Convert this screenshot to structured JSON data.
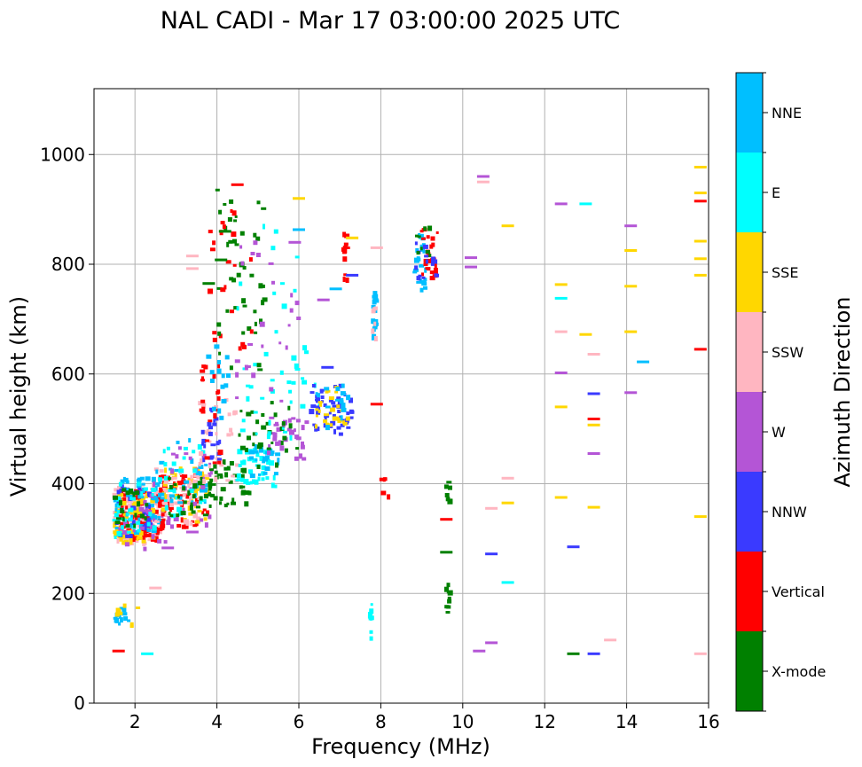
{
  "chart_data": {
    "type": "scatter",
    "title": "NAL CADI - Mar 17 03:00:00 2025 UTC",
    "xlabel": "Frequency (MHz)",
    "ylabel": "Virtual height (km)",
    "xlim": [
      1.0,
      16.0
    ],
    "ylim": [
      0,
      1120
    ],
    "x_ticks": [
      2,
      4,
      6,
      8,
      10,
      12,
      14,
      16
    ],
    "y_ticks": [
      0,
      200,
      400,
      600,
      800,
      1000
    ],
    "grid": true,
    "colorbar": {
      "label": "Azimuth Direction",
      "categories": [
        {
          "name": "X-mode",
          "color": "#008000"
        },
        {
          "name": "Vertical",
          "color": "#ff0000"
        },
        {
          "name": "NNW",
          "color": "#3a3aff"
        },
        {
          "name": "W",
          "color": "#b455d6"
        },
        {
          "name": "SSW",
          "color": "#ffb6c1"
        },
        {
          "name": "SSE",
          "color": "#ffd700"
        },
        {
          "name": "E",
          "color": "#00ffff"
        },
        {
          "name": "NNE",
          "color": "#00bfff"
        }
      ]
    },
    "clusters": [
      {
        "direction": "SSW",
        "x": [
          1.5,
          2.6
        ],
        "y": [
          290,
          400
        ],
        "n": 160
      },
      {
        "direction": "Vertical",
        "x": [
          1.6,
          2.7
        ],
        "y": [
          295,
          390
        ],
        "n": 90
      },
      {
        "direction": "SSE",
        "x": [
          1.5,
          2.5
        ],
        "y": [
          290,
          380
        ],
        "n": 60
      },
      {
        "direction": "NNE",
        "x": [
          1.5,
          2.6
        ],
        "y": [
          310,
          410
        ],
        "n": 50
      },
      {
        "direction": "NNW",
        "x": [
          1.5,
          2.4
        ],
        "y": [
          300,
          400
        ],
        "n": 30
      },
      {
        "direction": "W",
        "x": [
          1.6,
          2.8
        ],
        "y": [
          280,
          410
        ],
        "n": 25
      },
      {
        "direction": "E",
        "x": [
          1.5,
          2.5
        ],
        "y": [
          300,
          400
        ],
        "n": 30
      },
      {
        "direction": "X-mode",
        "x": [
          1.5,
          2.3
        ],
        "y": [
          320,
          390
        ],
        "n": 20
      },
      {
        "direction": "Vertical",
        "x": [
          2.6,
          3.8
        ],
        "y": [
          320,
          420
        ],
        "n": 50
      },
      {
        "direction": "SSE",
        "x": [
          2.6,
          3.8
        ],
        "y": [
          330,
          430
        ],
        "n": 40
      },
      {
        "direction": "SSW",
        "x": [
          2.5,
          3.6
        ],
        "y": [
          320,
          430
        ],
        "n": 40
      },
      {
        "direction": "NNE",
        "x": [
          2.5,
          3.9
        ],
        "y": [
          360,
          480
        ],
        "n": 30
      },
      {
        "direction": "W",
        "x": [
          2.7,
          3.9
        ],
        "y": [
          320,
          470
        ],
        "n": 25
      },
      {
        "direction": "E",
        "x": [
          2.6,
          3.8
        ],
        "y": [
          340,
          470
        ],
        "n": 25
      },
      {
        "direction": "X-mode",
        "x": [
          2.8,
          4.0
        ],
        "y": [
          340,
          410
        ],
        "n": 30
      },
      {
        "direction": "X-mode",
        "x": [
          3.8,
          4.8
        ],
        "y": [
          360,
          440
        ],
        "n": 35
      },
      {
        "direction": "SSW",
        "x": [
          3.5,
          4.5
        ],
        "y": [
          400,
          560
        ],
        "n": 30
      },
      {
        "direction": "NNW",
        "x": [
          3.6,
          4.1
        ],
        "y": [
          440,
          540
        ],
        "n": 20
      },
      {
        "direction": "Vertical",
        "x": [
          3.6,
          4.1
        ],
        "y": [
          420,
          700
        ],
        "n": 25
      },
      {
        "direction": "NNE",
        "x": [
          3.8,
          4.3
        ],
        "y": [
          500,
          650
        ],
        "n": 15
      },
      {
        "direction": "E",
        "x": [
          4.5,
          5.5
        ],
        "y": [
          390,
          470
        ],
        "n": 40
      },
      {
        "direction": "NNE",
        "x": [
          4.8,
          5.5
        ],
        "y": [
          410,
          470
        ],
        "n": 25
      },
      {
        "direction": "W",
        "x": [
          5.2,
          6.2
        ],
        "y": [
          440,
          520
        ],
        "n": 30
      },
      {
        "direction": "X-mode",
        "x": [
          4.5,
          6.0
        ],
        "y": [
          430,
          560
        ],
        "n": 30
      },
      {
        "direction": "E",
        "x": [
          4.5,
          6.5
        ],
        "y": [
          480,
          650
        ],
        "n": 30
      },
      {
        "direction": "NNW",
        "x": [
          6.3,
          7.3
        ],
        "y": [
          490,
          580
        ],
        "n": 55
      },
      {
        "direction": "SSE",
        "x": [
          6.4,
          7.2
        ],
        "y": [
          500,
          580
        ],
        "n": 25
      },
      {
        "direction": "NNE",
        "x": [
          6.4,
          7.3
        ],
        "y": [
          500,
          590
        ],
        "n": 15
      },
      {
        "direction": "X-mode",
        "x": [
          4.0,
          5.2
        ],
        "y": [
          600,
          950
        ],
        "n": 45
      },
      {
        "direction": "Vertical",
        "x": [
          3.8,
          4.9
        ],
        "y": [
          600,
          900
        ],
        "n": 20
      },
      {
        "direction": "W",
        "x": [
          4.4,
          6.0
        ],
        "y": [
          550,
          860
        ],
        "n": 25
      },
      {
        "direction": "E",
        "x": [
          4.5,
          6.0
        ],
        "y": [
          560,
          870
        ],
        "n": 15
      },
      {
        "direction": "NNE",
        "x": [
          7.8,
          7.9
        ],
        "y": [
          660,
          750
        ],
        "n": 20
      },
      {
        "direction": "SSW",
        "x": [
          7.8,
          7.9
        ],
        "y": [
          660,
          720
        ],
        "n": 6
      },
      {
        "direction": "NNE",
        "x": [
          8.8,
          9.1
        ],
        "y": [
          750,
          860
        ],
        "n": 25
      },
      {
        "direction": "Vertical",
        "x": [
          9.0,
          9.4
        ],
        "y": [
          770,
          865
        ],
        "n": 25
      },
      {
        "direction": "NNW",
        "x": [
          8.8,
          9.4
        ],
        "y": [
          770,
          840
        ],
        "n": 15
      },
      {
        "direction": "X-mode",
        "x": [
          8.8,
          9.2
        ],
        "y": [
          810,
          870
        ],
        "n": 8
      },
      {
        "direction": "Vertical",
        "x": [
          7.1,
          7.2
        ],
        "y": [
          770,
          860
        ],
        "n": 14
      },
      {
        "direction": "E",
        "x": [
          7.7,
          7.8
        ],
        "y": [
          110,
          185
        ],
        "n": 9
      },
      {
        "direction": "X-mode",
        "x": [
          9.6,
          9.7
        ],
        "y": [
          165,
          225
        ],
        "n": 10
      },
      {
        "direction": "X-mode",
        "x": [
          9.6,
          9.7
        ],
        "y": [
          360,
          410
        ],
        "n": 8
      },
      {
        "direction": "Vertical",
        "x": [
          8.0,
          8.2
        ],
        "y": [
          375,
          415
        ],
        "n": 6
      },
      {
        "direction": "NNE",
        "x": [
          1.5,
          2.0
        ],
        "y": [
          140,
          185
        ],
        "n": 12
      },
      {
        "direction": "SSE",
        "x": [
          1.5,
          2.1
        ],
        "y": [
          140,
          180
        ],
        "n": 8
      }
    ],
    "isolated_points": [
      {
        "x": 1.6,
        "y": 95,
        "direction": "Vertical"
      },
      {
        "x": 2.3,
        "y": 90,
        "direction": "E"
      },
      {
        "x": 2.5,
        "y": 210,
        "direction": "SSW"
      },
      {
        "x": 9.6,
        "y": 275,
        "direction": "X-mode"
      },
      {
        "x": 9.6,
        "y": 335,
        "direction": "Vertical"
      },
      {
        "x": 10.2,
        "y": 795,
        "direction": "W"
      },
      {
        "x": 10.2,
        "y": 812,
        "direction": "W"
      },
      {
        "x": 10.4,
        "y": 95,
        "direction": "W"
      },
      {
        "x": 10.5,
        "y": 950,
        "direction": "SSW"
      },
      {
        "x": 10.5,
        "y": 960,
        "direction": "W"
      },
      {
        "x": 10.7,
        "y": 355,
        "direction": "SSW"
      },
      {
        "x": 10.7,
        "y": 272,
        "direction": "NNW"
      },
      {
        "x": 10.7,
        "y": 110,
        "direction": "W"
      },
      {
        "x": 11.1,
        "y": 870,
        "direction": "SSE"
      },
      {
        "x": 11.1,
        "y": 410,
        "direction": "SSW"
      },
      {
        "x": 11.1,
        "y": 365,
        "direction": "SSE"
      },
      {
        "x": 11.1,
        "y": 220,
        "direction": "E"
      },
      {
        "x": 12.4,
        "y": 910,
        "direction": "W"
      },
      {
        "x": 12.4,
        "y": 763,
        "direction": "SSE"
      },
      {
        "x": 12.4,
        "y": 738,
        "direction": "E"
      },
      {
        "x": 12.4,
        "y": 677,
        "direction": "SSW"
      },
      {
        "x": 12.4,
        "y": 602,
        "direction": "W"
      },
      {
        "x": 12.4,
        "y": 540,
        "direction": "SSE"
      },
      {
        "x": 12.4,
        "y": 375,
        "direction": "SSE"
      },
      {
        "x": 12.7,
        "y": 285,
        "direction": "NNW"
      },
      {
        "x": 12.7,
        "y": 90,
        "direction": "X-mode"
      },
      {
        "x": 13.0,
        "y": 910,
        "direction": "E"
      },
      {
        "x": 13.0,
        "y": 672,
        "direction": "SSE"
      },
      {
        "x": 13.2,
        "y": 636,
        "direction": "SSW"
      },
      {
        "x": 13.2,
        "y": 564,
        "direction": "NNW"
      },
      {
        "x": 13.2,
        "y": 518,
        "direction": "Vertical"
      },
      {
        "x": 13.2,
        "y": 507,
        "direction": "SSE"
      },
      {
        "x": 13.2,
        "y": 455,
        "direction": "W"
      },
      {
        "x": 13.2,
        "y": 357,
        "direction": "SSE"
      },
      {
        "x": 13.2,
        "y": 90,
        "direction": "NNW"
      },
      {
        "x": 13.6,
        "y": 115,
        "direction": "SSW"
      },
      {
        "x": 14.1,
        "y": 870,
        "direction": "W"
      },
      {
        "x": 14.1,
        "y": 825,
        "direction": "SSE"
      },
      {
        "x": 14.1,
        "y": 760,
        "direction": "SSE"
      },
      {
        "x": 14.1,
        "y": 677,
        "direction": "SSE"
      },
      {
        "x": 14.1,
        "y": 566,
        "direction": "W"
      },
      {
        "x": 14.4,
        "y": 622,
        "direction": "NNE"
      },
      {
        "x": 15.8,
        "y": 977,
        "direction": "SSE"
      },
      {
        "x": 15.8,
        "y": 930,
        "direction": "SSE"
      },
      {
        "x": 15.8,
        "y": 915,
        "direction": "Vertical"
      },
      {
        "x": 15.8,
        "y": 842,
        "direction": "SSE"
      },
      {
        "x": 15.8,
        "y": 810,
        "direction": "SSE"
      },
      {
        "x": 15.8,
        "y": 780,
        "direction": "SSE"
      },
      {
        "x": 15.8,
        "y": 645,
        "direction": "Vertical"
      },
      {
        "x": 15.8,
        "y": 340,
        "direction": "SSE"
      },
      {
        "x": 15.8,
        "y": 90,
        "direction": "SSW"
      },
      {
        "x": 6.0,
        "y": 920,
        "direction": "SSE"
      },
      {
        "x": 4.5,
        "y": 945,
        "direction": "Vertical"
      },
      {
        "x": 3.4,
        "y": 815,
        "direction": "SSW"
      },
      {
        "x": 3.4,
        "y": 792,
        "direction": "SSW"
      },
      {
        "x": 3.8,
        "y": 765,
        "direction": "X-mode"
      },
      {
        "x": 4.1,
        "y": 808,
        "direction": "X-mode"
      },
      {
        "x": 4.2,
        "y": 860,
        "direction": "X-mode"
      },
      {
        "x": 5.9,
        "y": 840,
        "direction": "W"
      },
      {
        "x": 6.0,
        "y": 863,
        "direction": "NNE"
      },
      {
        "x": 6.6,
        "y": 735,
        "direction": "W"
      },
      {
        "x": 6.9,
        "y": 755,
        "direction": "NNE"
      },
      {
        "x": 7.3,
        "y": 780,
        "direction": "NNW"
      },
      {
        "x": 7.3,
        "y": 848,
        "direction": "SSE"
      },
      {
        "x": 7.9,
        "y": 830,
        "direction": "SSW"
      },
      {
        "x": 7.9,
        "y": 545,
        "direction": "Vertical"
      },
      {
        "x": 3.4,
        "y": 312,
        "direction": "W"
      },
      {
        "x": 2.8,
        "y": 283,
        "direction": "W"
      },
      {
        "x": 6.7,
        "y": 612,
        "direction": "NNW"
      }
    ]
  }
}
